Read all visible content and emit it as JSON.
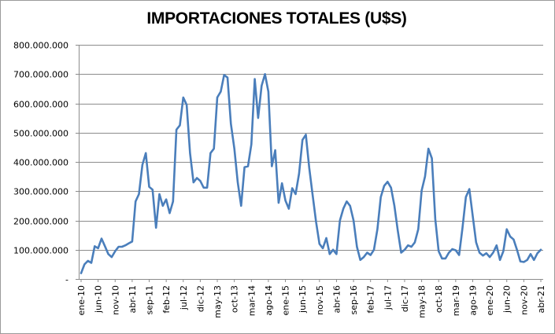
{
  "chart_data": {
    "type": "line",
    "title": "IMPORTACIONES TOTALES (U$S)",
    "xlabel": "",
    "ylabel": "",
    "ylim": [
      0,
      800000000
    ],
    "yticks": [
      0,
      100000000,
      200000000,
      300000000,
      400000000,
      500000000,
      600000000,
      700000000,
      800000000
    ],
    "ytick_labels": [
      "-",
      "100.000.000",
      "200.000.000",
      "300.000.000",
      "400.000.000",
      "500.000.000",
      "600.000.000",
      "700.000.000",
      "800.000.000"
    ],
    "xtick_labels": [
      "ene-10",
      "jun-10",
      "nov-10",
      "abr-11",
      "sep-11",
      "feb-12",
      "jul-12",
      "dic-12",
      "may-13",
      "oct-13",
      "mar-14",
      "ago-14",
      "ene-15",
      "jun-15",
      "nov-15",
      "abr-16",
      "sep-16",
      "feb-17",
      "jul-17",
      "dic-17",
      "may-18",
      "oct-18",
      "mar-19",
      "ago-19",
      "ene-20",
      "jun-20",
      "nov-20",
      "abr-21"
    ],
    "grid": true,
    "legend": "none",
    "line_color": "#4a7ebb",
    "series": [
      {
        "values": [
          20000000,
          50000000,
          62000000,
          55000000,
          112000000,
          105000000,
          138000000,
          112000000,
          85000000,
          75000000,
          95000000,
          110000000,
          110000000,
          115000000,
          122000000,
          128000000,
          265000000,
          290000000,
          390000000,
          430000000,
          315000000,
          305000000,
          175000000,
          290000000,
          250000000,
          272000000,
          225000000,
          265000000,
          510000000,
          525000000,
          620000000,
          595000000,
          430000000,
          330000000,
          345000000,
          335000000,
          312000000,
          312000000,
          430000000,
          445000000,
          620000000,
          640000000,
          697000000,
          688000000,
          530000000,
          445000000,
          330000000,
          250000000,
          382000000,
          385000000,
          460000000,
          683000000,
          550000000,
          660000000,
          700000000,
          640000000,
          385000000,
          440000000,
          260000000,
          327000000,
          268000000,
          240000000,
          310000000,
          290000000,
          360000000,
          475000000,
          493000000,
          380000000,
          285000000,
          195000000,
          120000000,
          105000000,
          140000000,
          85000000,
          100000000,
          85000000,
          200000000,
          240000000,
          265000000,
          250000000,
          200000000,
          110000000,
          65000000,
          75000000,
          90000000,
          82000000,
          100000000,
          170000000,
          280000000,
          318000000,
          332000000,
          312000000,
          250000000,
          165000000,
          90000000,
          100000000,
          115000000,
          110000000,
          125000000,
          170000000,
          302000000,
          350000000,
          445000000,
          412000000,
          205000000,
          95000000,
          70000000,
          70000000,
          90000000,
          102000000,
          98000000,
          82000000,
          175000000,
          280000000,
          307000000,
          215000000,
          125000000,
          90000000,
          80000000,
          88000000,
          75000000,
          90000000,
          115000000,
          65000000,
          95000000,
          170000000,
          145000000,
          135000000,
          100000000,
          60000000,
          58000000,
          65000000,
          85000000,
          65000000,
          88000000,
          100000000
        ]
      }
    ]
  }
}
